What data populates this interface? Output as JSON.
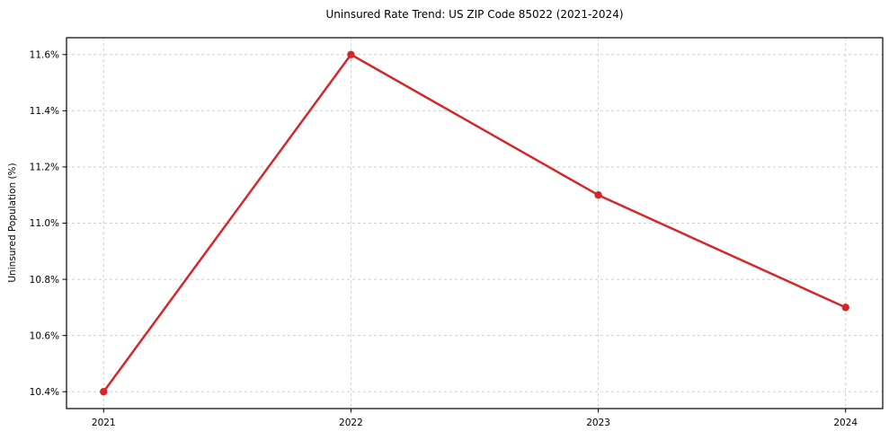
{
  "chart_data": {
    "type": "line",
    "title": "Uninsured Rate Trend: US ZIP Code 85022 (2021-2024)",
    "xlabel": "",
    "ylabel": "Uninsured Population (%)",
    "x": [
      2021,
      2022,
      2023,
      2024
    ],
    "xtick_labels": [
      "2021",
      "2022",
      "2023",
      "2024"
    ],
    "series": [
      {
        "values": [
          10.4,
          11.6,
          11.1,
          10.7
        ],
        "color": "#d62728",
        "marker": "circle",
        "line_width": 2.5
      }
    ],
    "yticks": [
      10.4,
      10.6,
      10.8,
      11.0,
      11.2,
      11.4,
      11.6
    ],
    "ytick_labels": [
      "10.4%",
      "10.6%",
      "10.8%",
      "11.0%",
      "11.2%",
      "11.4%",
      "11.6%"
    ],
    "xlim": [
      2020.85,
      2024.15
    ],
    "ylim": [
      10.34,
      11.66
    ],
    "grid": true,
    "grid_style": "dashed",
    "grid_color": "#cfcfcf",
    "spine_color": "#000000",
    "tick_color": "#000000",
    "background": "#ffffff",
    "legend": false
  }
}
